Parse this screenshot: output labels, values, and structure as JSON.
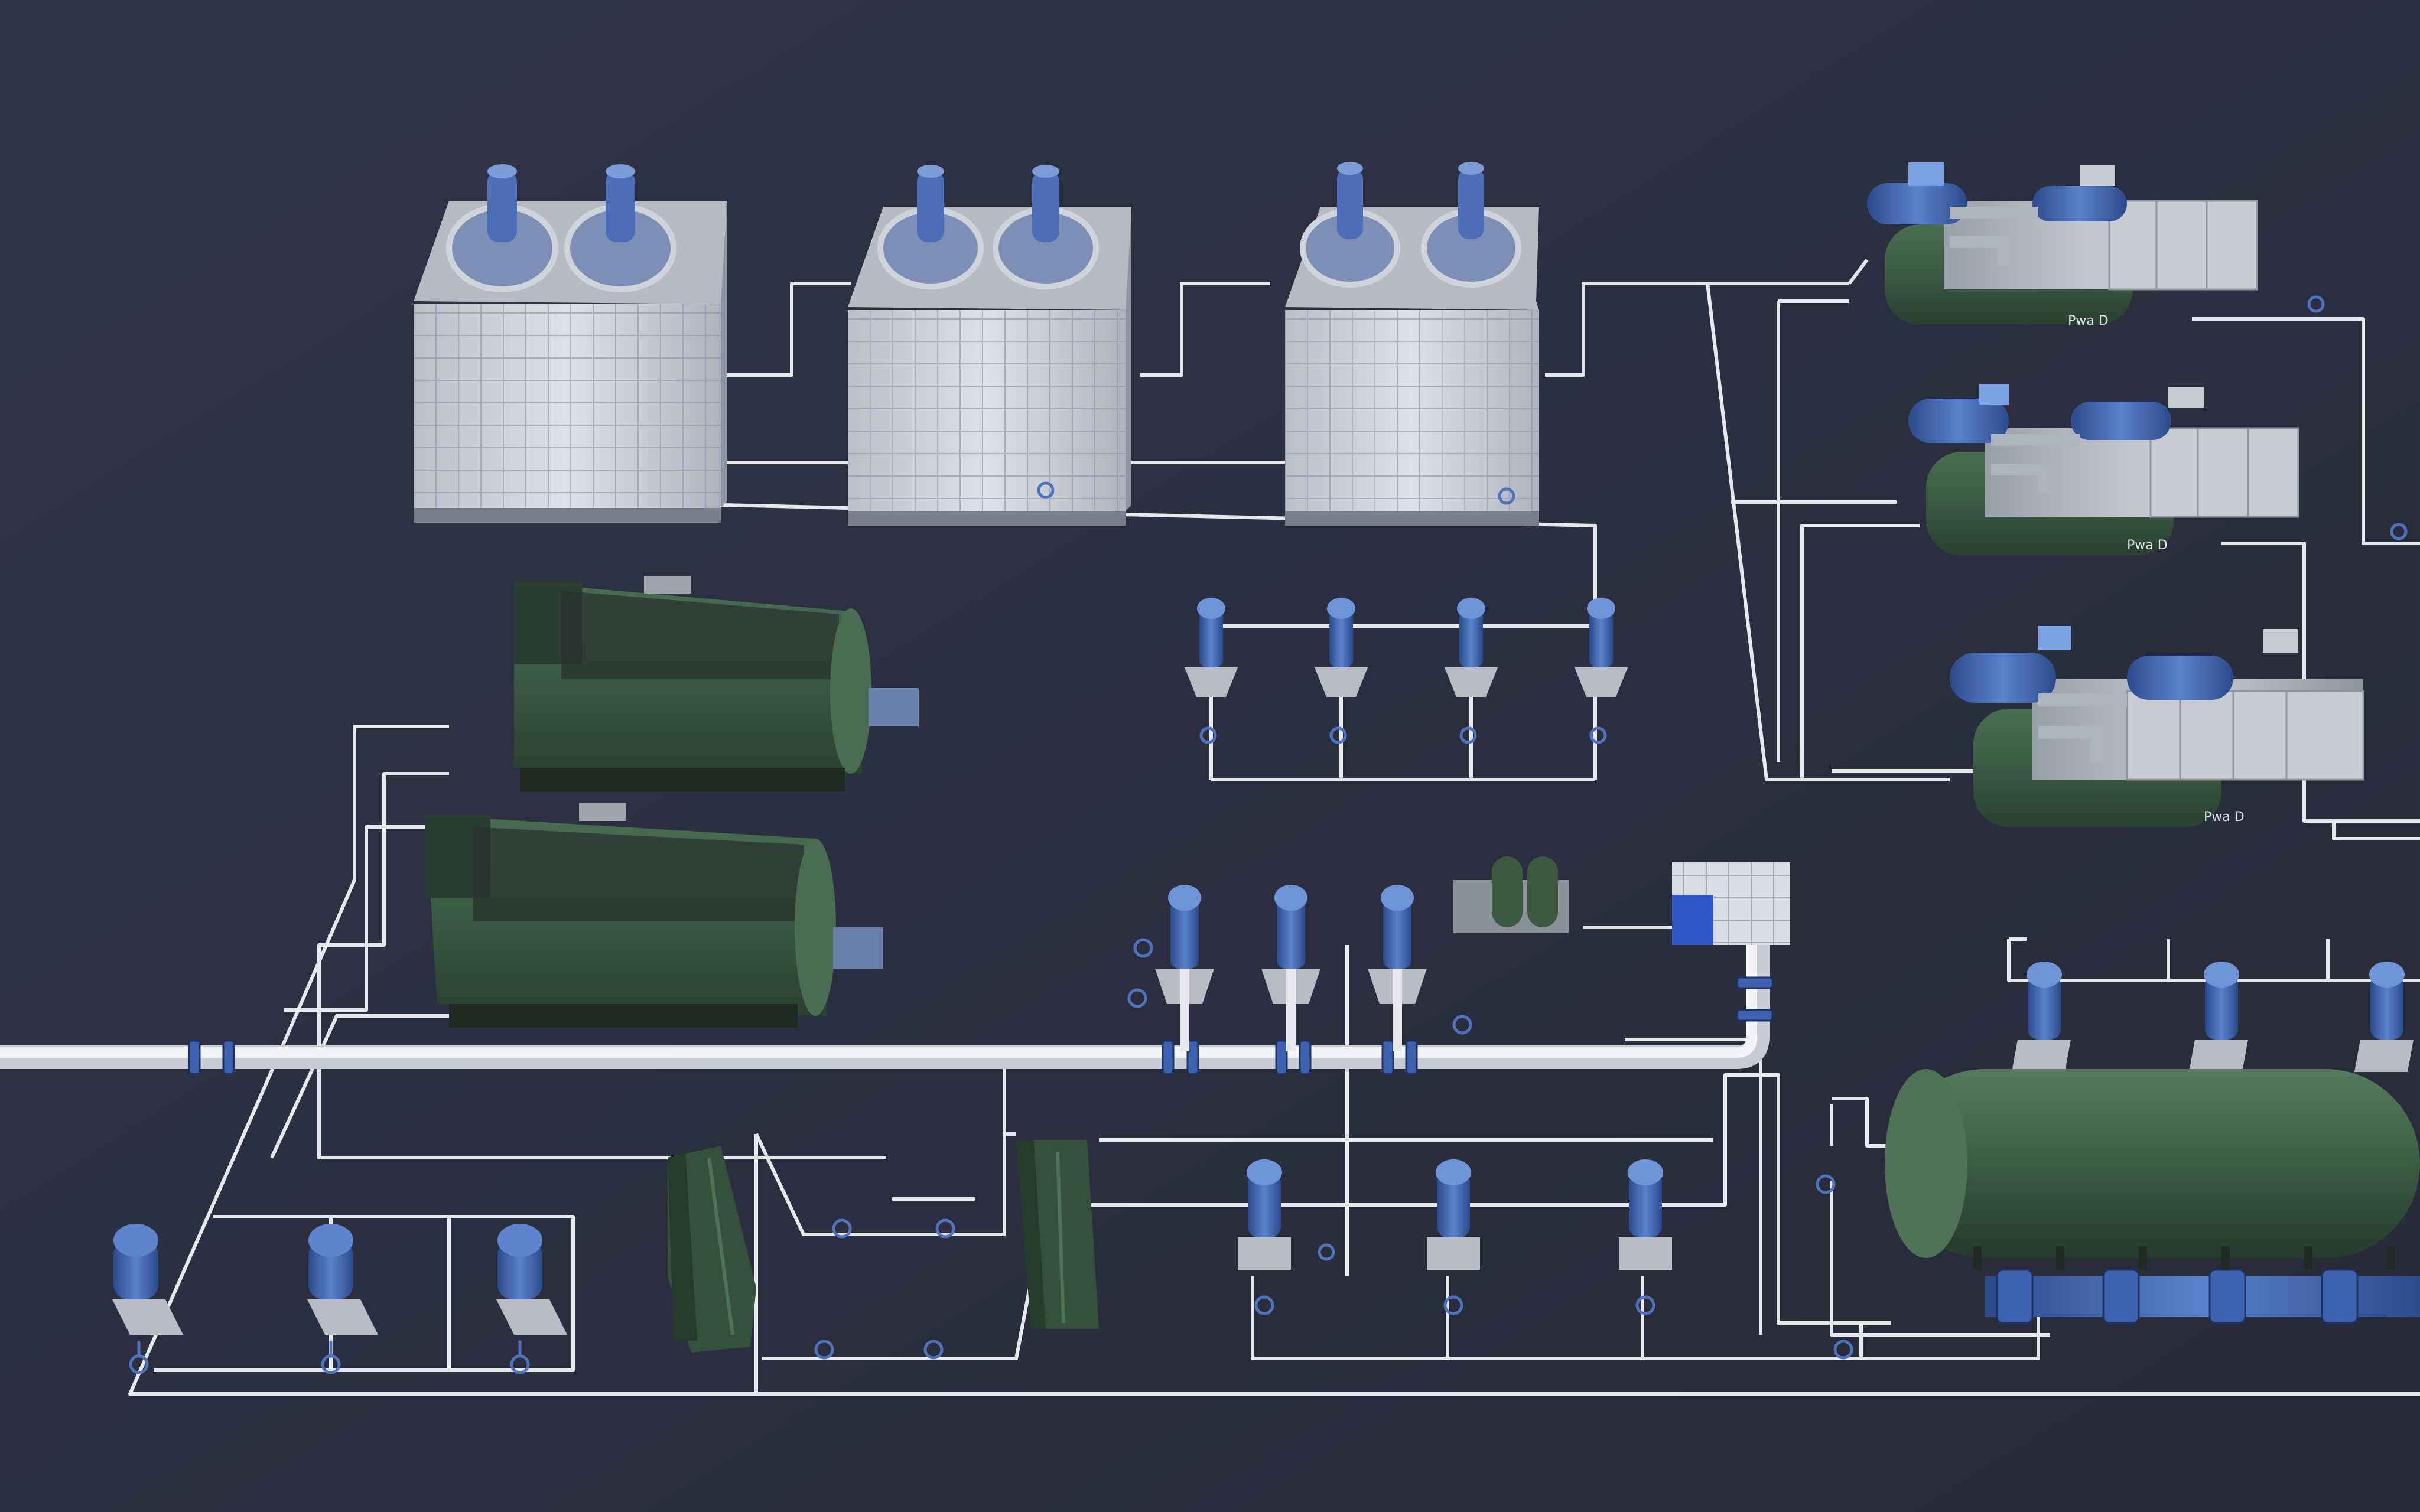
{
  "scene": {
    "background": "#2b3040",
    "pipe_color": "#e6e8ee",
    "main_pipe_color": "#f2f3f7",
    "equipment_green": "#3c5a42",
    "equipment_green_dark": "#2c4532",
    "accent_blue": "#3f62b0",
    "cooling_tower_panel": "#d7dbe3"
  },
  "labels": {
    "chiller_1_tag": "Pwa D",
    "chiller_2_tag": "Pwa D",
    "chiller_3_tag": "Pwa D"
  },
  "equipment": {
    "cooling_towers": [
      {
        "id": "cooling-tower-1",
        "fans": 2
      },
      {
        "id": "cooling-tower-2",
        "fans": 2
      },
      {
        "id": "cooling-tower-3",
        "fans": 2
      }
    ],
    "chillers": [
      {
        "id": "chiller-1",
        "icon": "centrifugal-chiller-icon"
      },
      {
        "id": "chiller-2",
        "icon": "centrifugal-chiller-icon"
      },
      {
        "id": "chiller-3",
        "icon": "centrifugal-chiller-icon"
      }
    ],
    "boilers": [
      {
        "id": "boiler-1",
        "icon": "boiler-icon"
      },
      {
        "id": "boiler-2",
        "icon": "boiler-icon"
      }
    ],
    "pump_groups": {
      "cooling_water_pumps": 4,
      "chilled_water_pumps": 3,
      "hot_water_pumps": 3,
      "secondary_pumps": 3,
      "tank_pumps": 3
    },
    "heat_exchangers": 2,
    "storage_tank": {
      "id": "storage-tank",
      "icon": "horizontal-tank-icon"
    },
    "expansion_unit": {
      "id": "expansion-unit",
      "icon": "expansion-tank-icon"
    },
    "water_treatment": {
      "id": "water-treatment-unit",
      "icon": "water-treatment-icon"
    }
  }
}
